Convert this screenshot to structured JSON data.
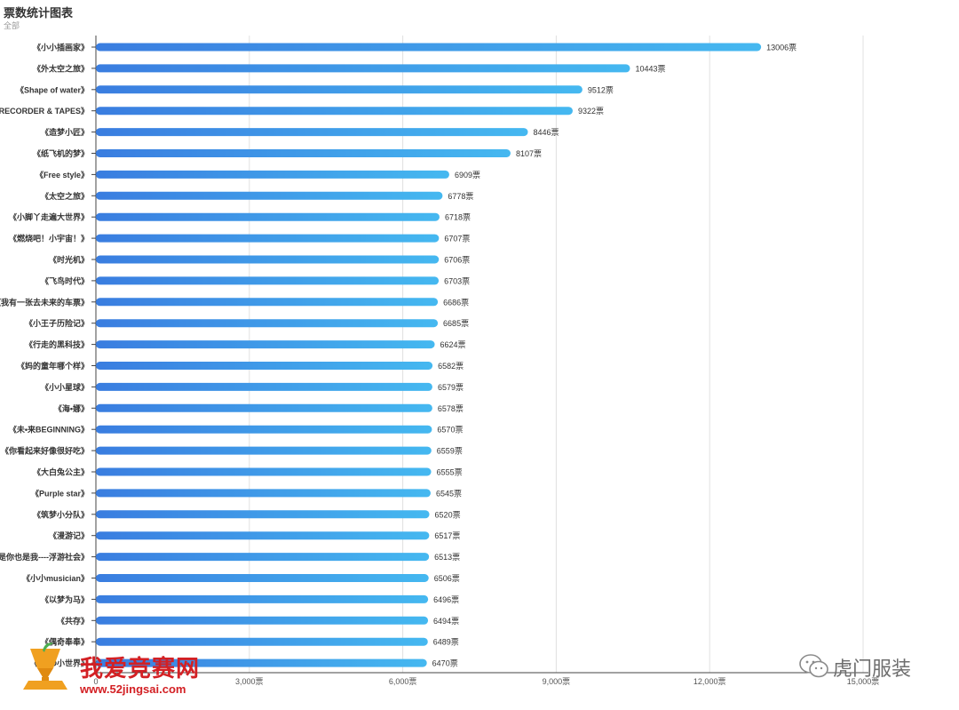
{
  "chart_data": {
    "type": "bar",
    "orientation": "horizontal",
    "title": "票数统计图表",
    "subtitle": "全部",
    "categories": [
      "《小小插画家》",
      "《外太空之旅》",
      "《Shape of water》",
      "《RECORDER & TAPES》",
      "《造梦小匠》",
      "《纸飞机的梦》",
      "《Free style》",
      "《太空之旅》",
      "《小脚丫走遍大世界》",
      "《燃烧吧！小宇宙！》",
      "《时光机》",
      "《飞鸟时代》",
      "《我有一张去未来的车票》",
      "《小王子历险记》",
      "《行走的黑科技》",
      "《妈的童年哪个样》",
      "《小小星球》",
      "《海•娜》",
      "《未•来BEGINNING》",
      "《你看起来好像很好吃》",
      "《大白兔公主》",
      "《Purple star》",
      "《筑梦小分队》",
      "《漫游记》",
      "《是你也是我----浮游社会》",
      "《小小musician》",
      "《以梦为马》",
      "《共存》",
      "《偶奇奉奉》",
      "《2 DO小世界》"
    ],
    "values": [
      13006,
      10443,
      9512,
      9322,
      8446,
      8107,
      6909,
      6778,
      6718,
      6707,
      6706,
      6703,
      6686,
      6685,
      6624,
      6582,
      6579,
      6578,
      6570,
      6559,
      6555,
      6545,
      6520,
      6517,
      6513,
      6506,
      6496,
      6494,
      6489,
      6470
    ],
    "value_suffix": "票",
    "xlim": [
      0,
      15000
    ],
    "xticks": [
      0,
      3000,
      6000,
      9000,
      12000,
      15000
    ],
    "xtick_labels": [
      "0",
      "3,000票",
      "6,000票",
      "9,000票",
      "12,000票",
      "15,000票"
    ],
    "grid": true,
    "bar_gradient": [
      "#3a7de0",
      "#45b8f0"
    ]
  },
  "watermarks": {
    "left_text": "我爱竞赛网",
    "left_url": "www.52jingsai.com",
    "right_text": "虎门服装"
  }
}
